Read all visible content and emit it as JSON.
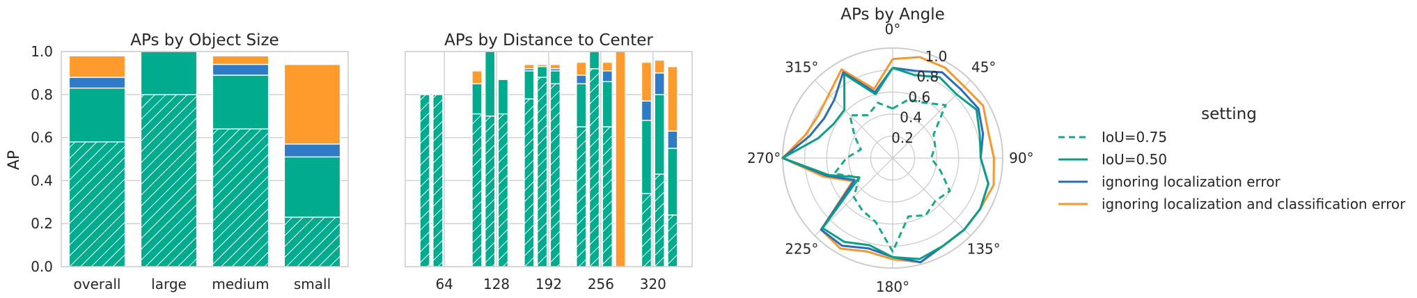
{
  "chart_data": [
    {
      "type": "bar",
      "title": "APs by Object Size",
      "ylabel": "AP",
      "ylim": [
        0,
        1.0
      ],
      "yticks": [
        "0.0",
        "0.2",
        "0.4",
        "0.6",
        "0.8",
        "1.0"
      ],
      "categories": [
        "overall",
        "large",
        "medium",
        "small"
      ],
      "series": [
        {
          "key": "iou75",
          "values": [
            0.58,
            0.8,
            0.64,
            0.23
          ]
        },
        {
          "key": "iou50",
          "values": [
            0.83,
            1.0,
            0.89,
            0.51
          ]
        },
        {
          "key": "loc",
          "values": [
            0.88,
            1.0,
            0.94,
            0.57
          ]
        },
        {
          "key": "cls",
          "values": [
            0.98,
            1.0,
            0.98,
            0.94
          ]
        }
      ]
    },
    {
      "type": "bar",
      "title": "APs by Distance to Center",
      "ylim": [
        0,
        1.0
      ],
      "xticks": [
        "64",
        "128",
        "192",
        "256",
        "320"
      ],
      "xtick_values": [
        64,
        128,
        192,
        256,
        320
      ],
      "bin_width": 16,
      "bins": [
        {
          "x": 40,
          "v": [
            0.8,
            0.8,
            0.8,
            0.8
          ]
        },
        {
          "x": 56,
          "v": [
            0.8,
            0.8,
            0.8,
            0.8
          ]
        },
        {
          "x": 104,
          "v": [
            0.71,
            0.85,
            0.85,
            0.91
          ]
        },
        {
          "x": 120,
          "v": [
            0.7,
            1.0,
            1.0,
            1.0
          ]
        },
        {
          "x": 136,
          "v": [
            0.71,
            0.87,
            0.87,
            0.87
          ]
        },
        {
          "x": 168,
          "v": [
            0.78,
            0.91,
            0.92,
            0.94
          ]
        },
        {
          "x": 184,
          "v": [
            0.88,
            0.93,
            0.93,
            0.94
          ]
        },
        {
          "x": 200,
          "v": [
            0.85,
            0.91,
            0.92,
            0.94
          ]
        },
        {
          "x": 232,
          "v": [
            0.65,
            0.85,
            0.89,
            0.95
          ]
        },
        {
          "x": 248,
          "v": [
            0.92,
            1.0,
            1.0,
            1.0
          ]
        },
        {
          "x": 264,
          "v": [
            0.65,
            0.86,
            0.91,
            0.95
          ]
        },
        {
          "x": 280,
          "v": [
            0.0,
            0.0,
            0.0,
            1.0
          ]
        },
        {
          "x": 312,
          "v": [
            0.34,
            0.68,
            0.77,
            0.95
          ]
        },
        {
          "x": 328,
          "v": [
            0.43,
            0.8,
            0.9,
            0.96
          ]
        },
        {
          "x": 344,
          "v": [
            0.24,
            0.55,
            0.63,
            0.93
          ]
        }
      ]
    },
    {
      "type": "line",
      "polar": true,
      "title": "APs by Angle",
      "theta_ticks": [
        "0°",
        "45°",
        "90°",
        "135°",
        "180°",
        "225°",
        "270°",
        "315°"
      ],
      "r_ticks": [
        "0.2",
        "0.4",
        "0.6",
        "0.8",
        "1.0"
      ],
      "rlim": [
        0,
        1.0
      ],
      "theta_step_deg": 15,
      "series": [
        {
          "key": "iou75",
          "name": "IoU=0.75",
          "values": [
            0.45,
            0.55,
            0.58,
            0.68,
            0.43,
            0.4,
            0.35,
            0.45,
            0.6,
            0.55,
            0.6,
            0.55,
            0.85,
            0.6,
            0.55,
            0.5,
            0.35,
            0.55,
            0.42,
            0.3,
            0.4,
            0.55,
            0.45,
            0.52
          ]
        },
        {
          "key": "iou50",
          "name": "IoU=0.50",
          "values": [
            0.82,
            0.78,
            0.85,
            0.82,
            0.88,
            0.82,
            0.8,
            0.9,
            0.92,
            0.92,
            0.92,
            0.95,
            0.9,
            0.82,
            0.88,
            0.9,
            0.35,
            0.6,
            1.0,
            0.7,
            0.62,
            0.62,
            0.88,
            0.6
          ]
        },
        {
          "key": "loc",
          "name": "ignoring localization error",
          "values": [
            0.82,
            0.82,
            0.9,
            0.88,
            0.9,
            0.85,
            0.8,
            0.9,
            0.92,
            0.92,
            0.92,
            0.98,
            0.9,
            0.85,
            0.92,
            0.92,
            0.4,
            0.62,
            1.0,
            0.78,
            0.72,
            0.75,
            0.9,
            0.62
          ]
        },
        {
          "key": "cls",
          "name": "ignoring localization and classification error",
          "values": [
            0.9,
            0.95,
            0.95,
            0.92,
            0.95,
            0.9,
            0.92,
            0.95,
            0.92,
            0.92,
            0.92,
            0.98,
            0.92,
            0.88,
            0.95,
            0.92,
            0.42,
            0.65,
            1.0,
            0.82,
            0.78,
            0.82,
            0.93,
            0.65
          ]
        }
      ]
    }
  ],
  "legend": {
    "title": "setting",
    "placement": "right",
    "entries": [
      {
        "label": "IoU=0.75",
        "color": "#1aa88c",
        "dashed": true
      },
      {
        "label": "IoU=0.50",
        "color": "#0a9e88",
        "dashed": false
      },
      {
        "label": "ignoring localization error",
        "color": "#2b6cb8",
        "dashed": false
      },
      {
        "label": "ignoring localization and classification error",
        "color": "#f6962b",
        "dashed": false
      }
    ]
  },
  "colors": {
    "iou75": "#00ab8e",
    "iou50": "#00ab8e",
    "loc": "#2f7bc6",
    "cls": "#ff9b2d",
    "grid": "#cccccc",
    "spine": "#cccccc",
    "hatch": "#ffffff"
  }
}
